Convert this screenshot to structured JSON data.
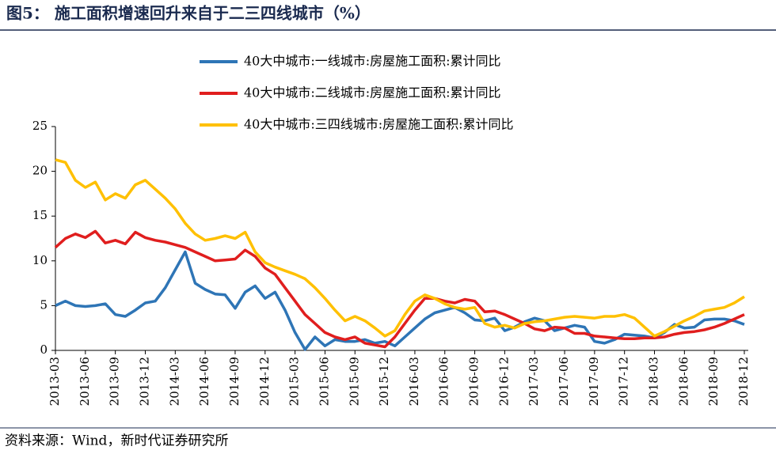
{
  "header": {
    "title": "图5： 施工面积增速回升来自于二三四线城市（%）"
  },
  "chart_data": {
    "type": "line",
    "categories": [
      "2013-03",
      null,
      null,
      "2013-06",
      null,
      null,
      "2013-09",
      null,
      null,
      "2013-12",
      null,
      null,
      "2014-03",
      null,
      null,
      "2014-06",
      null,
      null,
      "2014-09",
      null,
      null,
      "2014-12",
      null,
      null,
      "2015-03",
      null,
      null,
      "2015-06",
      null,
      null,
      "2015-09",
      null,
      null,
      "2015-12",
      null,
      null,
      "2016-03",
      null,
      null,
      "2016-06",
      null,
      null,
      "2016-09",
      null,
      null,
      "2016-12",
      null,
      null,
      "2017-03",
      null,
      null,
      "2017-06",
      null,
      null,
      "2017-09",
      null,
      null,
      "2017-12",
      null,
      null,
      "2018-03",
      null,
      null,
      "2018-06",
      null,
      null,
      "2018-09",
      null,
      null,
      "2018-12"
    ],
    "series": [
      {
        "name": "40大中城市:一线城市:房屋施工面积:累计同比",
        "color": "#2e75b6",
        "values": [
          5.0,
          5.5,
          5.0,
          4.9,
          5.0,
          5.2,
          4.0,
          3.8,
          4.5,
          5.3,
          5.5,
          7.0,
          9.0,
          11.0,
          7.5,
          6.8,
          6.3,
          6.2,
          4.7,
          6.5,
          7.2,
          5.8,
          6.5,
          4.5,
          2.0,
          0.1,
          1.5,
          0.5,
          1.2,
          1.0,
          1.0,
          1.2,
          0.8,
          1.0,
          0.5,
          1.5,
          2.5,
          3.5,
          4.2,
          4.5,
          4.8,
          4.2,
          3.4,
          3.3,
          3.6,
          2.2,
          2.6,
          3.2,
          3.6,
          3.3,
          2.2,
          2.5,
          2.8,
          2.6,
          1.0,
          0.8,
          1.2,
          1.8,
          1.7,
          1.6,
          1.4,
          2.0,
          2.9,
          2.5,
          2.6,
          3.4,
          3.5,
          3.5,
          3.3,
          2.9
        ]
      },
      {
        "name": "40大中城市:二线城市:房屋施工面积:累计同比",
        "color": "#e01e1e",
        "values": [
          11.5,
          12.5,
          13.0,
          12.6,
          13.3,
          12.0,
          12.3,
          11.9,
          13.2,
          12.6,
          12.3,
          12.1,
          11.8,
          11.5,
          11.0,
          10.5,
          10.0,
          10.1,
          10.2,
          11.2,
          10.5,
          9.2,
          8.5,
          7.0,
          5.5,
          4.0,
          3.0,
          2.0,
          1.5,
          1.2,
          1.5,
          0.8,
          0.6,
          0.4,
          1.5,
          3.0,
          4.5,
          5.8,
          5.8,
          5.5,
          5.3,
          5.7,
          5.5,
          4.3,
          4.4,
          4.0,
          3.5,
          3.0,
          2.4,
          2.2,
          2.6,
          2.5,
          1.9,
          1.9,
          1.6,
          1.5,
          1.4,
          1.3,
          1.3,
          1.4,
          1.4,
          1.5,
          1.8,
          2.0,
          2.1,
          2.3,
          2.6,
          3.0,
          3.5,
          4.0
        ]
      },
      {
        "name": "40大中城市:三四线城市:房屋施工面积:累计同比",
        "color": "#ffc000",
        "values": [
          21.3,
          21.0,
          19.0,
          18.2,
          18.8,
          16.8,
          17.5,
          17.0,
          18.5,
          19.0,
          18.0,
          17.0,
          15.8,
          14.2,
          13.0,
          12.3,
          12.5,
          12.8,
          12.5,
          13.2,
          11.0,
          9.8,
          9.3,
          8.9,
          8.5,
          8.0,
          7.0,
          5.8,
          4.5,
          3.3,
          3.8,
          3.3,
          2.5,
          1.6,
          2.2,
          4.0,
          5.5,
          6.2,
          5.8,
          5.2,
          4.8,
          4.6,
          4.8,
          3.0,
          2.6,
          2.8,
          2.5,
          3.0,
          3.2,
          3.3,
          3.5,
          3.7,
          3.8,
          3.7,
          3.6,
          3.8,
          3.8,
          4.0,
          3.6,
          2.6,
          1.6,
          2.1,
          2.7,
          3.3,
          3.8,
          4.4,
          4.6,
          4.8,
          5.3,
          6.0
        ]
      }
    ],
    "ylim": [
      0,
      25
    ],
    "yticks": [
      0,
      5,
      10,
      15,
      20,
      25
    ]
  },
  "footer": {
    "source": "资料来源：Wind，新时代证券研究所"
  }
}
